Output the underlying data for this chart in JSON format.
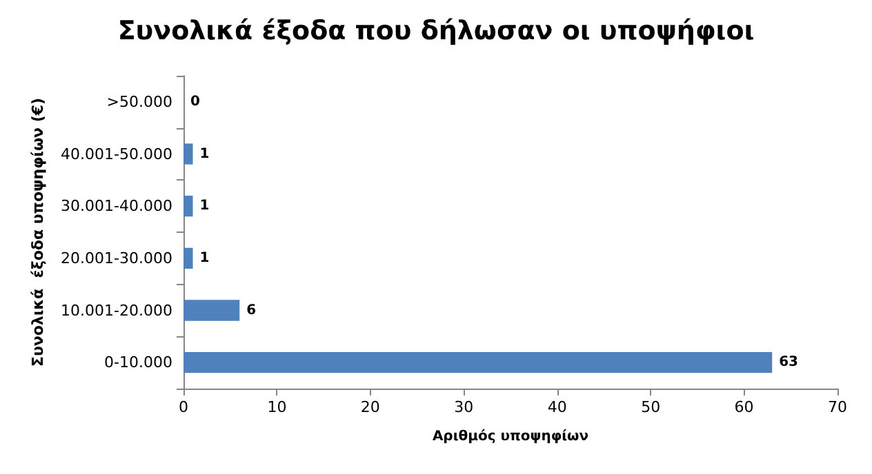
{
  "chart_data": {
    "type": "bar",
    "orientation": "horizontal",
    "title": "Συνολικά έξοδα που δήλωσαν οι υποψήφιοι",
    "xlabel": "Αριθμός υποψηφίων",
    "ylabel": "Συνολικά  έξοδα υποψηφίων (€)",
    "categories": [
      ">50.000",
      "40.001-50.000",
      "30.001-40.000",
      "20.001-30.000",
      "10.001-20.000",
      "0-10.000"
    ],
    "values": [
      0,
      1,
      1,
      1,
      6,
      63
    ],
    "color": "#4f81bd",
    "data_labels": true,
    "xlim": [
      0,
      70
    ],
    "xticks": [
      0,
      10,
      20,
      30,
      40,
      50,
      60,
      70
    ],
    "grid": false
  }
}
